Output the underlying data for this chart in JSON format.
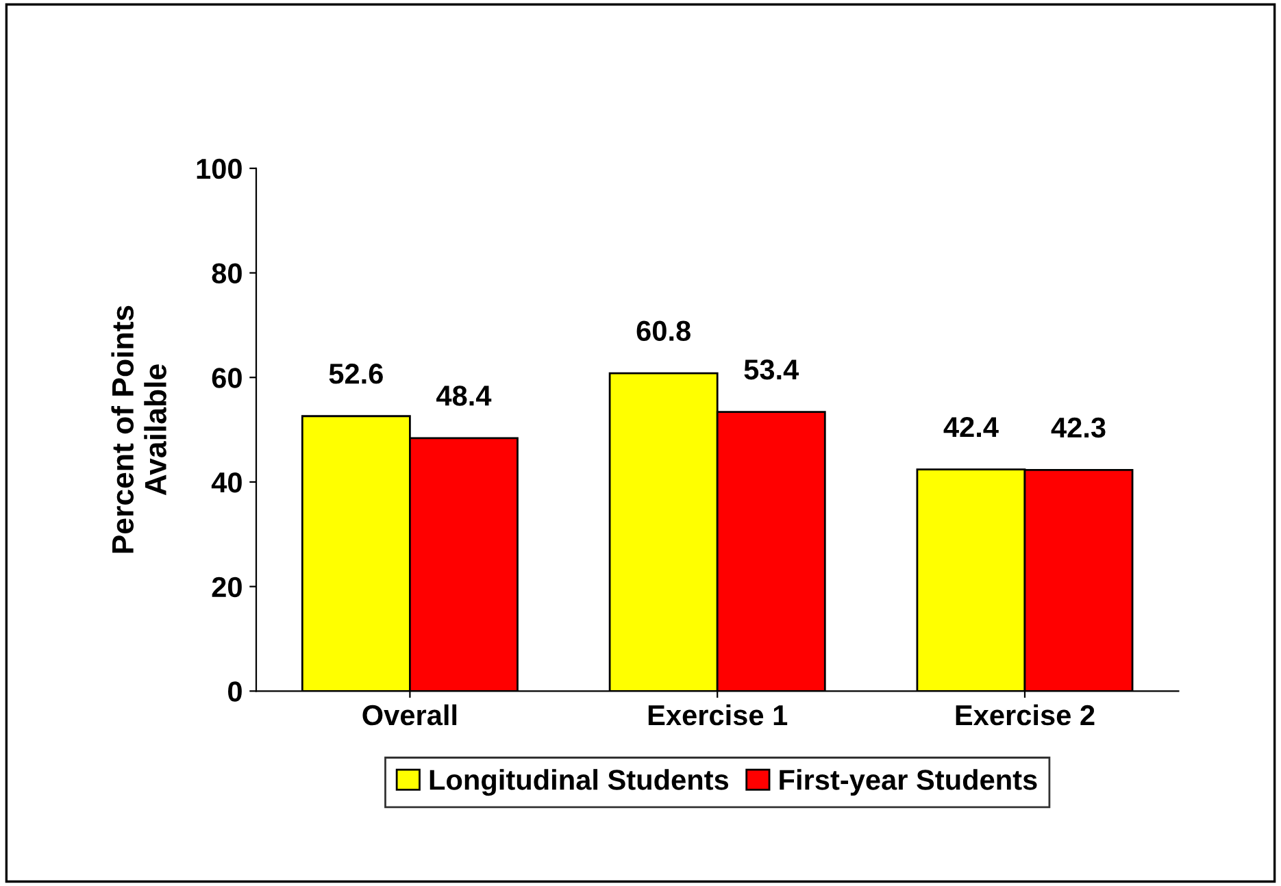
{
  "chart_data": {
    "type": "bar",
    "ylabel": "Percent of Points\nAvailable",
    "categories": [
      "Overall",
      "Exercise 1",
      "Exercise 2"
    ],
    "series": [
      {
        "name": "Longitudinal Students",
        "color": "#ffff00",
        "values": [
          52.6,
          60.8,
          42.4
        ]
      },
      {
        "name": "First-year Students",
        "color": "#ff0000",
        "values": [
          48.4,
          53.4,
          42.3
        ]
      }
    ],
    "ylim": [
      0,
      100
    ],
    "yticks": [
      0,
      20,
      40,
      60,
      80,
      100
    ],
    "data_labels": true,
    "grid": false,
    "legend": "bottom"
  }
}
